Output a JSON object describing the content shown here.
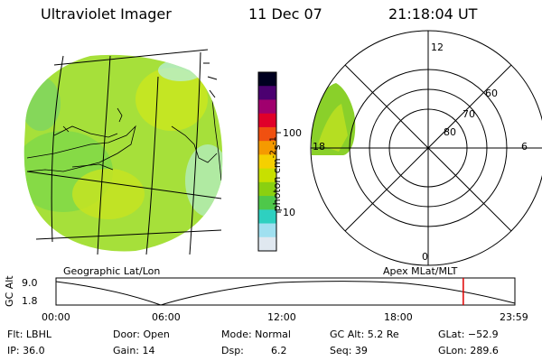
{
  "header": {
    "instrument": "Ultraviolet Imager",
    "date": "11 Dec 07",
    "time": "21:18:04 UT"
  },
  "colorbar": {
    "label": "photon cm",
    "label_sup1": "-2",
    "label_mid": "s",
    "label_sup2": "-1",
    "tick_100": "100",
    "tick_10": "10",
    "colors": [
      "#000020",
      "#4b0070",
      "#a0006e",
      "#e0002a",
      "#f05010",
      "#f59a00",
      "#f5d000",
      "#c8e000",
      "#8ad010",
      "#4ec84a",
      "#2ed0c0",
      "#a0e0f0",
      "#e0e8f0"
    ]
  },
  "geo_panel": {
    "caption": "Geographic Lat/Lon",
    "fill_color": "#9ee030"
  },
  "polar_panel": {
    "caption": "Apex MLat/MLT",
    "mlt_12": "12",
    "mlt_18": "18",
    "mlt_6": "6",
    "mlt_0": "0",
    "lat_60": "60",
    "lat_70": "70",
    "lat_80": "80"
  },
  "altitude_plot": {
    "ylabel": "GC Alt",
    "y_max": "9.0",
    "y_min": "1.8",
    "x_ticks": [
      "00:00",
      "06:00",
      "12:00",
      "18:00",
      "23:59"
    ],
    "current_time_marker_hour": 21.3
  },
  "status": {
    "flt": "Flt: LBHL",
    "ip": "IP: 36.0",
    "door": "Door: Open",
    "gain": "Gain: 14",
    "mode": "Mode: Normal",
    "dsp_label": "Dsp:",
    "dsp_value": "6.2",
    "gc_alt": "GC Alt: 5.2 Re",
    "seq": "Seq: 39",
    "glat": "GLat: −52.9",
    "glon": "GLon: 289.6"
  }
}
